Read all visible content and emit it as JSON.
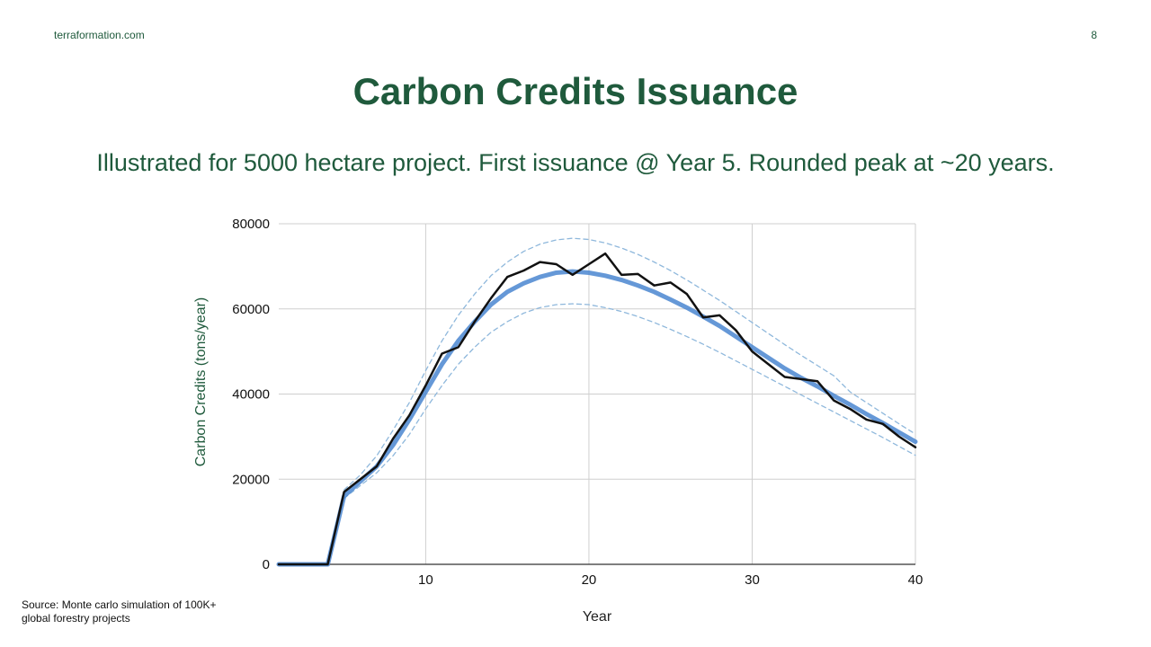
{
  "site": "terraformation.com",
  "page_number": 8,
  "source": "Source: Monte carlo simulation of 100K+ global forestry projects",
  "chart_data": {
    "type": "line",
    "title": "Carbon Credits Issuance",
    "subtitle": "Illustrated for 5000 hectare project. First issuance @ Year 5. Rounded peak at ~20 years.",
    "x_label": "Year",
    "y_label": "Carbon Credits (tons/year)",
    "x": [
      1,
      2,
      3,
      4,
      5,
      6,
      7,
      8,
      9,
      10,
      11,
      12,
      13,
      14,
      15,
      16,
      17,
      18,
      19,
      20,
      21,
      22,
      23,
      24,
      25,
      26,
      27,
      28,
      29,
      30,
      31,
      32,
      33,
      34,
      35,
      36,
      37,
      38,
      39,
      40
    ],
    "xlim": [
      1,
      40
    ],
    "xticks": [
      10,
      20,
      30,
      40
    ],
    "ylim": [
      0,
      80000
    ],
    "yticks": [
      0,
      20000,
      40000,
      60000,
      80000
    ],
    "grid": true,
    "series": [
      {
        "color": "#8fb8dc",
        "dash": true,
        "values": [
          null,
          null,
          null,
          null,
          17500,
          21000,
          25500,
          31500,
          38000,
          45500,
          52500,
          58500,
          63500,
          67800,
          71000,
          73500,
          75200,
          76200,
          76600,
          76300,
          75500,
          74300,
          72800,
          71000,
          69000,
          66800,
          64400,
          62000,
          59400,
          56800,
          54200,
          51600,
          49100,
          46700,
          44300,
          40500,
          38000,
          35500,
          33000,
          30600
        ]
      },
      {
        "color": "#8fb8dc",
        "dash": true,
        "values": [
          null,
          null,
          null,
          null,
          15500,
          18500,
          21500,
          25500,
          30500,
          36500,
          42000,
          47000,
          51000,
          54500,
          57000,
          59000,
          60300,
          61000,
          61200,
          61000,
          60300,
          59400,
          58200,
          56800,
          55200,
          53500,
          51700,
          49800,
          47800,
          45800,
          43800,
          41800,
          39800,
          37800,
          35800,
          33800,
          31800,
          29800,
          27700,
          25600
        ]
      },
      {
        "color": "#4a86d0",
        "width": 5,
        "values": [
          0,
          0,
          0,
          0,
          16000,
          19500,
          23000,
          28000,
          34000,
          40500,
          47000,
          52500,
          57000,
          61000,
          64000,
          66000,
          67500,
          68500,
          68800,
          68500,
          67800,
          66800,
          65500,
          64000,
          62200,
          60300,
          58200,
          56000,
          53500,
          51000,
          48500,
          46000,
          43800,
          41800,
          39600,
          37500,
          35300,
          33200,
          31000,
          28800
        ]
      },
      {
        "color": "#111111",
        "width": 2.5,
        "values": [
          0,
          0,
          0,
          0,
          17000,
          20000,
          23000,
          29500,
          35000,
          42000,
          49500,
          51000,
          57000,
          62500,
          67500,
          69000,
          71000,
          70500,
          68000,
          70500,
          73000,
          68000,
          68200,
          65500,
          66200,
          63500,
          58000,
          58500,
          55000,
          50000,
          47000,
          44000,
          43500,
          43000,
          38500,
          36500,
          34000,
          33000,
          30000,
          27500
        ]
      }
    ]
  }
}
